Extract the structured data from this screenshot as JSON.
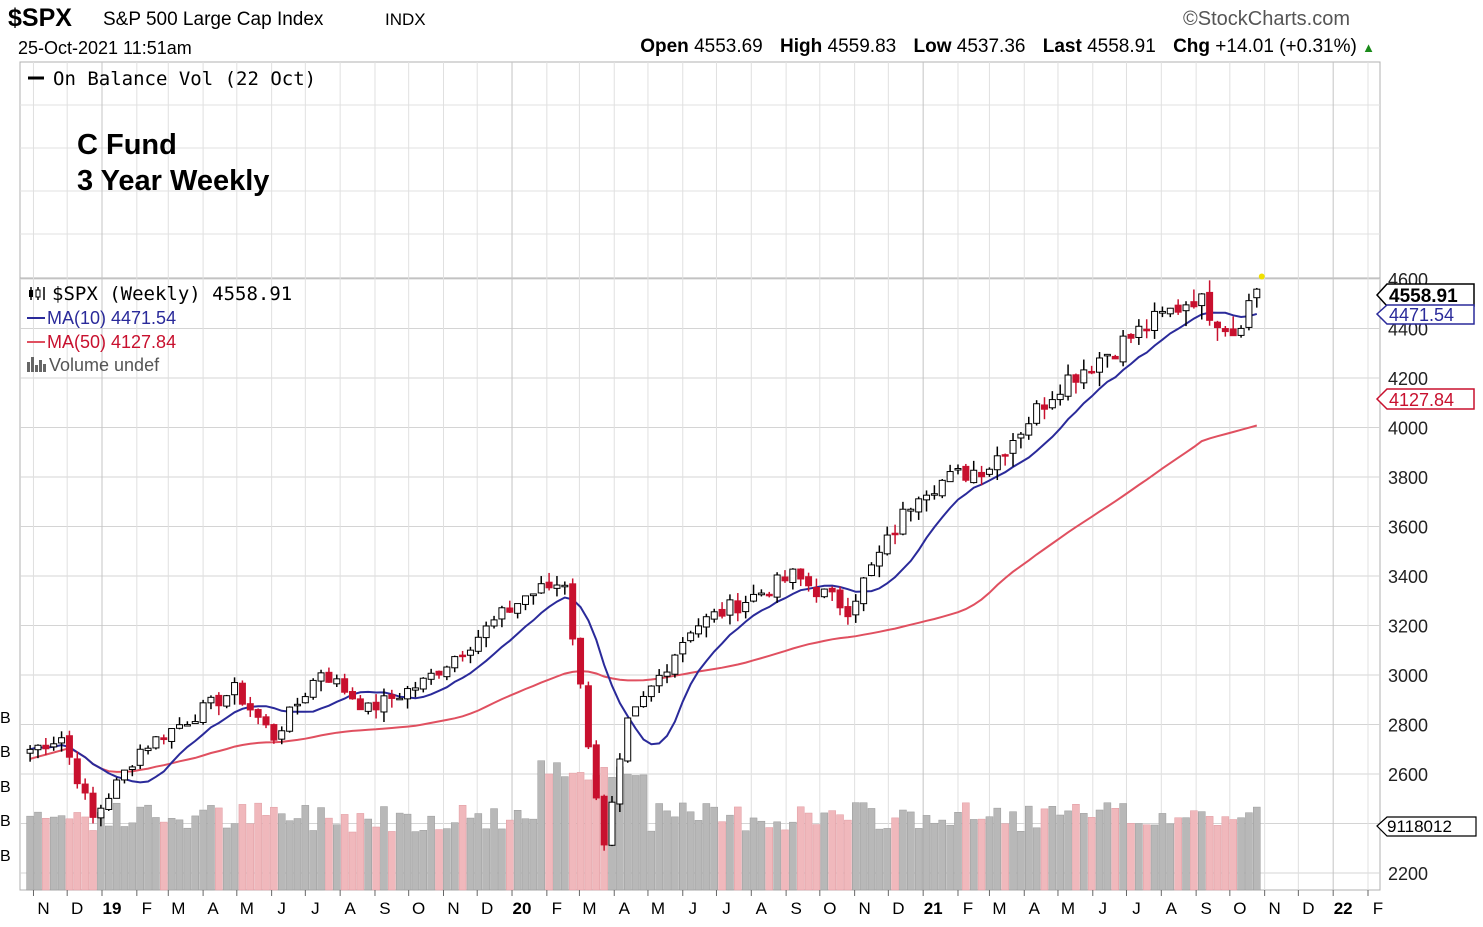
{
  "header": {
    "symbol": "$SPX",
    "name": "S&P 500 Large Cap Index",
    "exchange": "INDX",
    "brand": "©StockCharts.com",
    "datetime": "25-Oct-2021 11:51am",
    "open_label": "Open",
    "open": "4553.69",
    "high_label": "High",
    "high": "4559.83",
    "low_label": "Low",
    "low": "4537.36",
    "last_label": "Last",
    "last": "4558.91",
    "chg_label": "Chg",
    "chg": "+14.01 (+0.31%)"
  },
  "upper_panel": {
    "indicator_label": "On Balance Vol (22 Oct)",
    "annotation_line1": "C Fund",
    "annotation_line2": "3 Year Weekly"
  },
  "legend": {
    "price": "$SPX (Weekly) 4558.91",
    "ma10": "MA(10) 4471.54",
    "ma50": "MA(50) 4127.84",
    "volume": "Volume undef"
  },
  "badges": {
    "last": "4558.91",
    "ma10": "4471.54",
    "ma50": "4127.84",
    "volume": "9118012"
  },
  "colors": {
    "up": "#000000",
    "down": "#c8102e",
    "ma10": "#2a2a9a",
    "ma50": "#e05060",
    "vol_up": "#b8b8b8",
    "vol_down": "#f0b8bc",
    "grid": "#d4d4d4"
  },
  "chart_data": {
    "type": "candlestick",
    "interval": "weekly",
    "ylim": [
      2150,
      4660
    ],
    "y_ticks": [
      2200,
      2400,
      2600,
      2800,
      3000,
      3200,
      3400,
      3600,
      3800,
      4000,
      4200,
      4400,
      4600
    ],
    "y_tick_labels": [
      "2200",
      "",
      "2600",
      "2800",
      "3000",
      "3200",
      "3400",
      "3600",
      "3800",
      "4000",
      "4200",
      "4400",
      "4600"
    ],
    "volume_axis_labels": [
      "B",
      "B",
      "B",
      "B",
      "B"
    ],
    "x_months": [
      {
        "date": "2018-11-01",
        "label": "N",
        "bold": false
      },
      {
        "date": "2018-12-01",
        "label": "D",
        "bold": false
      },
      {
        "date": "2019-01-01",
        "label": "19",
        "bold": true
      },
      {
        "date": "2019-02-01",
        "label": "F",
        "bold": false
      },
      {
        "date": "2019-03-01",
        "label": "M",
        "bold": false
      },
      {
        "date": "2019-04-01",
        "label": "A",
        "bold": false
      },
      {
        "date": "2019-05-01",
        "label": "M",
        "bold": false
      },
      {
        "date": "2019-06-01",
        "label": "J",
        "bold": false
      },
      {
        "date": "2019-07-01",
        "label": "J",
        "bold": false
      },
      {
        "date": "2019-08-01",
        "label": "A",
        "bold": false
      },
      {
        "date": "2019-09-01",
        "label": "S",
        "bold": false
      },
      {
        "date": "2019-10-01",
        "label": "O",
        "bold": false
      },
      {
        "date": "2019-11-01",
        "label": "N",
        "bold": false
      },
      {
        "date": "2019-12-01",
        "label": "D",
        "bold": false
      },
      {
        "date": "2020-01-01",
        "label": "20",
        "bold": true
      },
      {
        "date": "2020-02-01",
        "label": "F",
        "bold": false
      },
      {
        "date": "2020-03-01",
        "label": "M",
        "bold": false
      },
      {
        "date": "2020-04-01",
        "label": "A",
        "bold": false
      },
      {
        "date": "2020-05-01",
        "label": "M",
        "bold": false
      },
      {
        "date": "2020-06-01",
        "label": "J",
        "bold": false
      },
      {
        "date": "2020-07-01",
        "label": "J",
        "bold": false
      },
      {
        "date": "2020-08-01",
        "label": "A",
        "bold": false
      },
      {
        "date": "2020-09-01",
        "label": "S",
        "bold": false
      },
      {
        "date": "2020-10-01",
        "label": "O",
        "bold": false
      },
      {
        "date": "2020-11-01",
        "label": "N",
        "bold": false
      },
      {
        "date": "2020-12-01",
        "label": "D",
        "bold": false
      },
      {
        "date": "2021-01-01",
        "label": "21",
        "bold": true
      },
      {
        "date": "2021-02-01",
        "label": "F",
        "bold": false
      },
      {
        "date": "2021-03-01",
        "label": "M",
        "bold": false
      },
      {
        "date": "2021-04-01",
        "label": "A",
        "bold": false
      },
      {
        "date": "2021-05-01",
        "label": "M",
        "bold": false
      },
      {
        "date": "2021-06-01",
        "label": "J",
        "bold": false
      },
      {
        "date": "2021-07-01",
        "label": "J",
        "bold": false
      },
      {
        "date": "2021-08-01",
        "label": "A",
        "bold": false
      },
      {
        "date": "2021-09-01",
        "label": "S",
        "bold": false
      },
      {
        "date": "2021-10-01",
        "label": "O",
        "bold": false
      },
      {
        "date": "2021-11-01",
        "label": "N",
        "bold": false
      },
      {
        "date": "2021-12-01",
        "label": "D",
        "bold": false
      },
      {
        "date": "2022-01-01",
        "label": "22",
        "bold": true
      },
      {
        "date": "2022-02-01",
        "label": "F",
        "bold": false
      }
    ],
    "price_keypoints": [
      {
        "date": "2018-10-29",
        "close": 2700
      },
      {
        "date": "2018-11-26",
        "close": 2750
      },
      {
        "date": "2018-12-24",
        "close": 2420
      },
      {
        "date": "2019-02-04",
        "close": 2700
      },
      {
        "date": "2019-04-29",
        "close": 2940
      },
      {
        "date": "2019-06-03",
        "close": 2750
      },
      {
        "date": "2019-07-15",
        "close": 3020
      },
      {
        "date": "2019-08-26",
        "close": 2860
      },
      {
        "date": "2019-10-14",
        "close": 2970
      },
      {
        "date": "2020-01-13",
        "close": 3320
      },
      {
        "date": "2020-02-17",
        "close": 3380
      },
      {
        "date": "2020-03-23",
        "close": 2300
      },
      {
        "date": "2020-04-13",
        "close": 2800
      },
      {
        "date": "2020-06-08",
        "close": 3190
      },
      {
        "date": "2020-09-07",
        "close": 3400
      },
      {
        "date": "2020-10-26",
        "close": 3270
      },
      {
        "date": "2020-12-28",
        "close": 3750
      },
      {
        "date": "2021-03-01",
        "close": 3850
      },
      {
        "date": "2021-05-03",
        "close": 4180
      },
      {
        "date": "2021-08-30",
        "close": 4530
      },
      {
        "date": "2021-10-04",
        "close": 4390
      },
      {
        "date": "2021-10-25",
        "close": 4558.91
      }
    ],
    "ma10_last": 4471.54,
    "ma50_last": 4127.84,
    "last_close": 4558.91
  }
}
